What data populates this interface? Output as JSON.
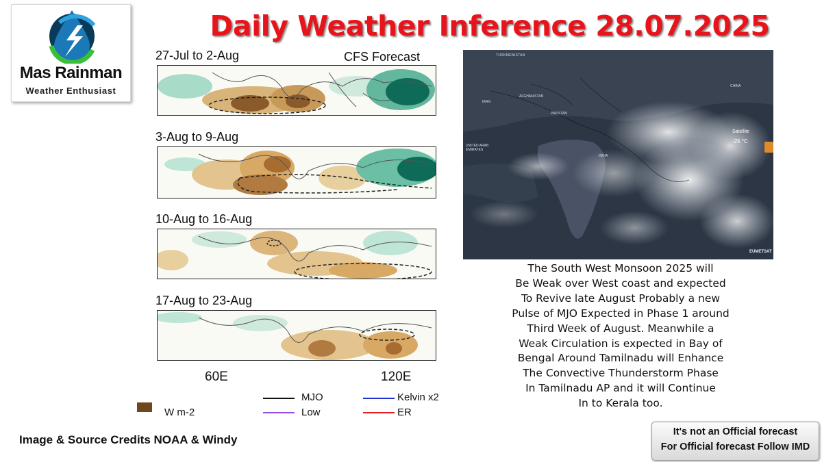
{
  "logo": {
    "name": "Mas Rainman",
    "tagline": "Weather Enthusiast"
  },
  "title": "Daily Weather Inference 28.07.2025",
  "forecast": {
    "source_label": "CFS Forecast",
    "panels": [
      {
        "label": "27-Jul to 2-Aug"
      },
      {
        "label": "3-Aug to 9-Aug"
      },
      {
        "label": "10-Aug to 16-Aug"
      },
      {
        "label": "17-Aug to 23-Aug"
      }
    ],
    "longitude_labels": [
      "60E",
      "120E"
    ],
    "legend": {
      "unit": "W m-2",
      "items": [
        {
          "label": "MJO",
          "color": "#111111"
        },
        {
          "label": "Kelvin x2",
          "color": "#2233cc"
        },
        {
          "label": "Low",
          "color": "#9a4fe0"
        },
        {
          "label": "ER",
          "color": "#e02020"
        }
      ]
    },
    "colors": {
      "dry": "#c89a5a",
      "dry_strong": "#8b5a2b",
      "wet": "#9fd8c4",
      "wet_strong": "#0d6b58"
    }
  },
  "satellite": {
    "countries": [
      "TURKMENISTAN",
      "IRAN",
      "AFGHANISTAN",
      "PAKISTAN",
      "INDIA",
      "UNITED ARAB EMIRATES",
      "CHINA"
    ],
    "overlay": {
      "layer": "Satellite",
      "temp": "-25 °C"
    },
    "credit": "EUMETSAT"
  },
  "description": [
    "The South West Monsoon 2025 will",
    "Be Weak over West coast and expected",
    "To Revive late August Probably a new",
    "Pulse of MJO Expected in Phase 1 around",
    "Third Week of August. Meanwhile a",
    "Weak Circulation is expected in Bay of",
    "Bengal Around Tamilnadu will Enhance",
    "The Convective Thunderstorm Phase",
    "In Tamilnadu AP and it will Continue",
    "In to Kerala too."
  ],
  "credits": "Image & Source Credits NOAA & Windy",
  "disclaimer": {
    "line1": "It's not an Official forecast",
    "line2": "For Official forecast Follow IMD"
  }
}
